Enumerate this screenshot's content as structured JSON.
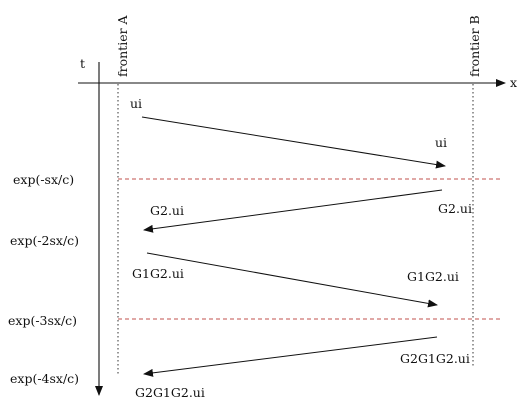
{
  "axes": {
    "x_label": "x",
    "t_label": "t"
  },
  "frontiers": {
    "a_label": "frontier A",
    "b_label": "frontier B"
  },
  "levels": [
    {
      "label": "exp(-sx/c)"
    },
    {
      "label": "exp(-2sx/c)"
    },
    {
      "label": "exp(-3sx/c)"
    },
    {
      "label": "exp(-4sx/c)"
    }
  ],
  "rays": [
    {
      "start_label": "ui",
      "end_label": "ui"
    },
    {
      "start_label": "G2.ui",
      "end_label": "G2.ui"
    },
    {
      "start_label": "G1G2.ui",
      "end_label": "G1G2.ui"
    },
    {
      "start_label": "G2G1G2.ui",
      "end_label": "G2G1G2.ui"
    }
  ],
  "colors": {
    "ink": "#111111",
    "level_line": "#c0504d"
  }
}
